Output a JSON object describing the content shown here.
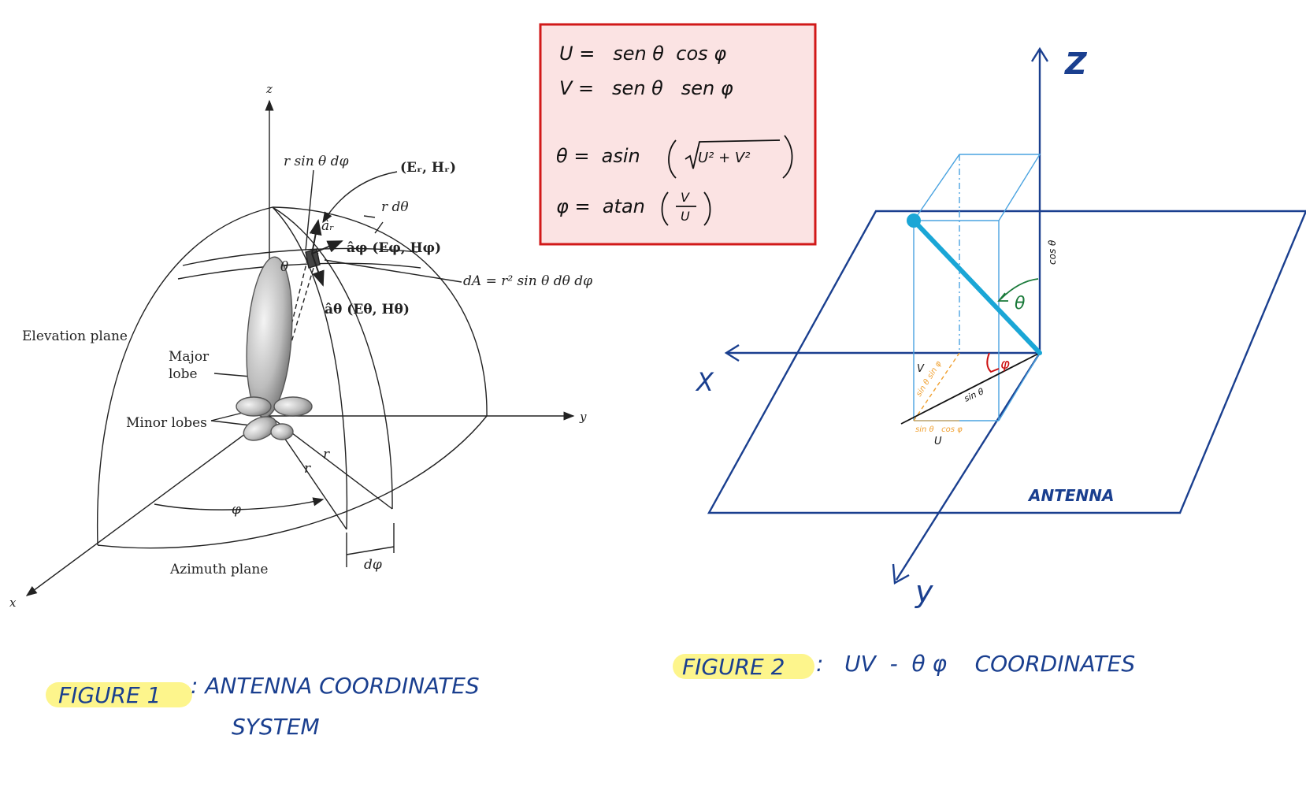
{
  "colors": {
    "ink": "#222222",
    "hand_blue": "#1a3f8f",
    "cyan": "#1aa6d6",
    "light_blue": "#4aa3e0",
    "orange": "#f0a030",
    "red": "#cc1111",
    "green": "#1a7a3a",
    "box_fill": "#fbe3e3",
    "box_border": "#d11919",
    "highlight": "#fdf58c"
  },
  "figure1": {
    "axis_z": "z",
    "axis_y": "y",
    "axis_x": "x",
    "r_sin_dphi": "r sin θ dφ",
    "er_hr": "(Eᵣ, Hᵣ)",
    "r_dtheta": "r dθ",
    "a_r": "âᵣ",
    "a_phi_label": "âφ (Eφ, Hφ)",
    "a_theta_label": "âθ (Eθ, Hθ)",
    "theta": "θ",
    "dA": "dA = r² sin θ dθ dφ",
    "elevation_plane": "Elevation plane",
    "major_lobe_1": "Major",
    "major_lobe_2": "lobe",
    "minor_lobes": "Minor lobes",
    "r1": "r",
    "r2": "r",
    "phi": "φ",
    "dphi": "dφ",
    "azimuth_plane": "Azimuth plane"
  },
  "formula_box": {
    "line_u": "U =   sen θ  cos φ",
    "line_v": "V =   sen θ   sen φ",
    "line_theta_pre": "θ =  asin",
    "line_theta_arg": "U² + V²",
    "line_phi_pre": "φ =  atan",
    "line_phi_num": "V",
    "line_phi_den": "U"
  },
  "figure2": {
    "axis_z": "Z",
    "axis_x": "X",
    "axis_y": "y",
    "cos_theta": "cos θ",
    "theta": "θ",
    "phi": "φ",
    "v_label": "V",
    "sin_theta_sin_phi": "sin θ  sin φ",
    "sin_theta": "sin θ",
    "sin_theta_cos_phi": "sin θ   cos φ",
    "u_label": "U",
    "antenna": "ANTENNA"
  },
  "captions": {
    "fig1_label": "FIGURE 1",
    "fig1_text": ": ANTENNA COORDINATES",
    "fig1_text2": "SYSTEM",
    "fig2_label": "FIGURE 2",
    "fig2_text": ":   UV  -  θ φ    COORDINATES"
  }
}
